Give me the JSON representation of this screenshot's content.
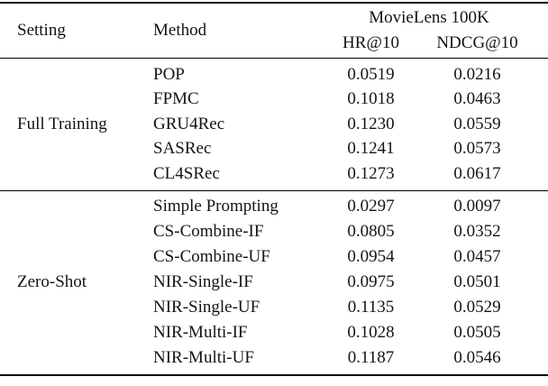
{
  "table": {
    "header": {
      "setting": "Setting",
      "method": "Method",
      "group": "MovieLens 100K",
      "metric1": "HR@10",
      "metric2": "NDCG@10"
    },
    "blocks": [
      {
        "setting": "Full Training",
        "rows": [
          {
            "method": "POP",
            "hr": "0.0519",
            "ndcg": "0.0216"
          },
          {
            "method": "FPMC",
            "hr": "0.1018",
            "ndcg": "0.0463"
          },
          {
            "method": "GRU4Rec",
            "hr": "0.1230",
            "ndcg": "0.0559"
          },
          {
            "method": "SASRec",
            "hr": "0.1241",
            "ndcg": "0.0573"
          },
          {
            "method": "CL4SRec",
            "hr": "0.1273",
            "ndcg": "0.0617"
          }
        ]
      },
      {
        "setting": "Zero-Shot",
        "rows": [
          {
            "method": "Simple Prompting",
            "hr": "0.0297",
            "ndcg": "0.0097"
          },
          {
            "method": "CS-Combine-IF",
            "hr": "0.0805",
            "ndcg": "0.0352"
          },
          {
            "method": "CS-Combine-UF",
            "hr": "0.0954",
            "ndcg": "0.0457"
          },
          {
            "method": "NIR-Single-IF",
            "hr": "0.0975",
            "ndcg": "0.0501"
          },
          {
            "method": "NIR-Single-UF",
            "hr": "0.1135",
            "ndcg": "0.0529"
          },
          {
            "method": "NIR-Multi-IF",
            "hr": "0.1028",
            "ndcg": "0.0505"
          },
          {
            "method": "NIR-Multi-UF",
            "hr": "0.1187",
            "ndcg": "0.0546"
          }
        ]
      }
    ],
    "colors": {
      "text": "#141414",
      "rule": "#000000",
      "background": "#ffffff"
    }
  }
}
